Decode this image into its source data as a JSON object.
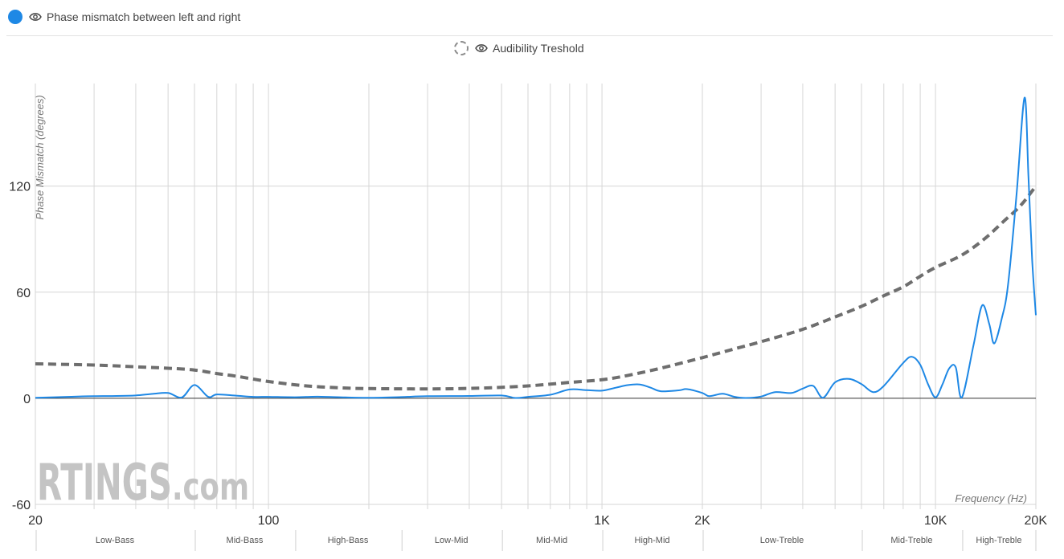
{
  "legend": [
    {
      "label": "Phase mismatch between left and right",
      "color": "#1e88e5",
      "style": "solid",
      "icon": "eye-icon"
    },
    {
      "label": "Audibility Treshold",
      "color": "#6e6e6e",
      "style": "dashed",
      "icon": "eye-icon"
    }
  ],
  "watermark": {
    "main": "RTINGS",
    "suffix": ".com"
  },
  "chart_data": {
    "type": "line",
    "title": "",
    "ylabel": "Phase Mismatch (degrees)",
    "xlabel": "Frequency (Hz)",
    "x_scale": "log",
    "xlim": [
      20,
      20000
    ],
    "ylim": [
      -60,
      178
    ],
    "grid": true,
    "x_tick_labels": [
      {
        "value": 20,
        "label": "20"
      },
      {
        "value": 100,
        "label": "100"
      },
      {
        "value": 1000,
        "label": "1K"
      },
      {
        "value": 2000,
        "label": "2K"
      },
      {
        "value": 10000,
        "label": "10K"
      },
      {
        "value": 20000,
        "label": "20K"
      }
    ],
    "y_tick_labels": [
      {
        "value": 120,
        "label": "120"
      },
      {
        "value": 60,
        "label": "60"
      },
      {
        "value": 0,
        "label": "0"
      },
      {
        "value": -60,
        "label": "-60"
      }
    ],
    "x_gridlines": [
      20,
      30,
      40,
      50,
      60,
      70,
      80,
      90,
      100,
      200,
      300,
      400,
      500,
      600,
      700,
      800,
      900,
      1000,
      2000,
      3000,
      4000,
      5000,
      6000,
      7000,
      8000,
      9000,
      10000,
      20000
    ],
    "frequency_bands": [
      {
        "label": "Low-Bass",
        "from": 20,
        "to": 60
      },
      {
        "label": "Mid-Bass",
        "from": 60,
        "to": 120
      },
      {
        "label": "High-Bass",
        "from": 120,
        "to": 250
      },
      {
        "label": "Low-Mid",
        "from": 250,
        "to": 500
      },
      {
        "label": "Mid-Mid",
        "from": 500,
        "to": 1000
      },
      {
        "label": "High-Mid",
        "from": 1000,
        "to": 2000
      },
      {
        "label": "Low-Treble",
        "from": 2000,
        "to": 6000
      },
      {
        "label": "Mid-Treble",
        "from": 6000,
        "to": 12000
      },
      {
        "label": "High-Treble",
        "from": 12000,
        "to": 20000
      }
    ],
    "series": [
      {
        "name": "Phase mismatch between left and right",
        "color": "#1e88e5",
        "style": "solid",
        "points": [
          [
            20,
            0.3
          ],
          [
            25,
            0.8
          ],
          [
            30,
            1.2
          ],
          [
            35,
            1.3
          ],
          [
            40,
            1.6
          ],
          [
            45,
            2.5
          ],
          [
            50,
            3.0
          ],
          [
            55,
            0.5
          ],
          [
            60,
            7.5
          ],
          [
            66,
            0.8
          ],
          [
            70,
            2.2
          ],
          [
            80,
            1.5
          ],
          [
            90,
            0.8
          ],
          [
            100,
            0.8
          ],
          [
            120,
            0.6
          ],
          [
            140,
            0.9
          ],
          [
            170,
            0.5
          ],
          [
            200,
            0.3
          ],
          [
            250,
            0.7
          ],
          [
            300,
            1.2
          ],
          [
            400,
            1.3
          ],
          [
            500,
            1.6
          ],
          [
            550,
            0.2
          ],
          [
            600,
            0.8
          ],
          [
            700,
            2.0
          ],
          [
            800,
            5.0
          ],
          [
            900,
            4.6
          ],
          [
            1000,
            4.3
          ],
          [
            1100,
            6.0
          ],
          [
            1200,
            7.5
          ],
          [
            1300,
            7.8
          ],
          [
            1400,
            6.0
          ],
          [
            1500,
            4.0
          ],
          [
            1700,
            4.5
          ],
          [
            1800,
            5.2
          ],
          [
            2000,
            3.0
          ],
          [
            2100,
            1.2
          ],
          [
            2300,
            2.6
          ],
          [
            2500,
            0.8
          ],
          [
            2700,
            0.2
          ],
          [
            3000,
            1.0
          ],
          [
            3300,
            3.5
          ],
          [
            3700,
            3.0
          ],
          [
            4000,
            5.5
          ],
          [
            4300,
            7.0
          ],
          [
            4600,
            0.3
          ],
          [
            5000,
            9.0
          ],
          [
            5500,
            11.0
          ],
          [
            6000,
            8.0
          ],
          [
            6500,
            3.5
          ],
          [
            7000,
            7.0
          ],
          [
            8000,
            20.0
          ],
          [
            8500,
            23.5
          ],
          [
            9000,
            19.0
          ],
          [
            9500,
            8.0
          ],
          [
            10000,
            0.5
          ],
          [
            10500,
            8.0
          ],
          [
            11000,
            17.0
          ],
          [
            11500,
            17.5
          ],
          [
            12000,
            0.5
          ],
          [
            13000,
            30.0
          ],
          [
            13800,
            52.5
          ],
          [
            14500,
            42.0
          ],
          [
            15000,
            31.0
          ],
          [
            15800,
            45.0
          ],
          [
            16500,
            64.0
          ],
          [
            17500,
            115.0
          ],
          [
            18500,
            170.0
          ],
          [
            19000,
            125.0
          ],
          [
            19500,
            78.0
          ],
          [
            20000,
            47.0
          ]
        ]
      },
      {
        "name": "Audibility Treshold",
        "color": "#6e6e6e",
        "style": "dashed",
        "points": [
          [
            20,
            19.5
          ],
          [
            30,
            18.8
          ],
          [
            40,
            17.8
          ],
          [
            50,
            17.0
          ],
          [
            60,
            16.0
          ],
          [
            70,
            14.0
          ],
          [
            80,
            12.5
          ],
          [
            100,
            9.5
          ],
          [
            130,
            7.0
          ],
          [
            170,
            5.8
          ],
          [
            200,
            5.5
          ],
          [
            300,
            5.3
          ],
          [
            400,
            5.6
          ],
          [
            500,
            6.2
          ],
          [
            600,
            7.0
          ],
          [
            700,
            8.0
          ],
          [
            800,
            9.0
          ],
          [
            1000,
            10.5
          ],
          [
            1200,
            13.0
          ],
          [
            1500,
            17.0
          ],
          [
            2000,
            23.0
          ],
          [
            2500,
            28.0
          ],
          [
            3000,
            32.0
          ],
          [
            4000,
            39.0
          ],
          [
            5000,
            46.0
          ],
          [
            6000,
            52.0
          ],
          [
            7000,
            58.0
          ],
          [
            8000,
            63.0
          ],
          [
            9000,
            69.0
          ],
          [
            10000,
            74.0
          ],
          [
            12000,
            81.0
          ],
          [
            14000,
            90.0
          ],
          [
            16000,
            100.0
          ],
          [
            18000,
            109.0
          ],
          [
            20000,
            120.0
          ]
        ]
      }
    ]
  }
}
